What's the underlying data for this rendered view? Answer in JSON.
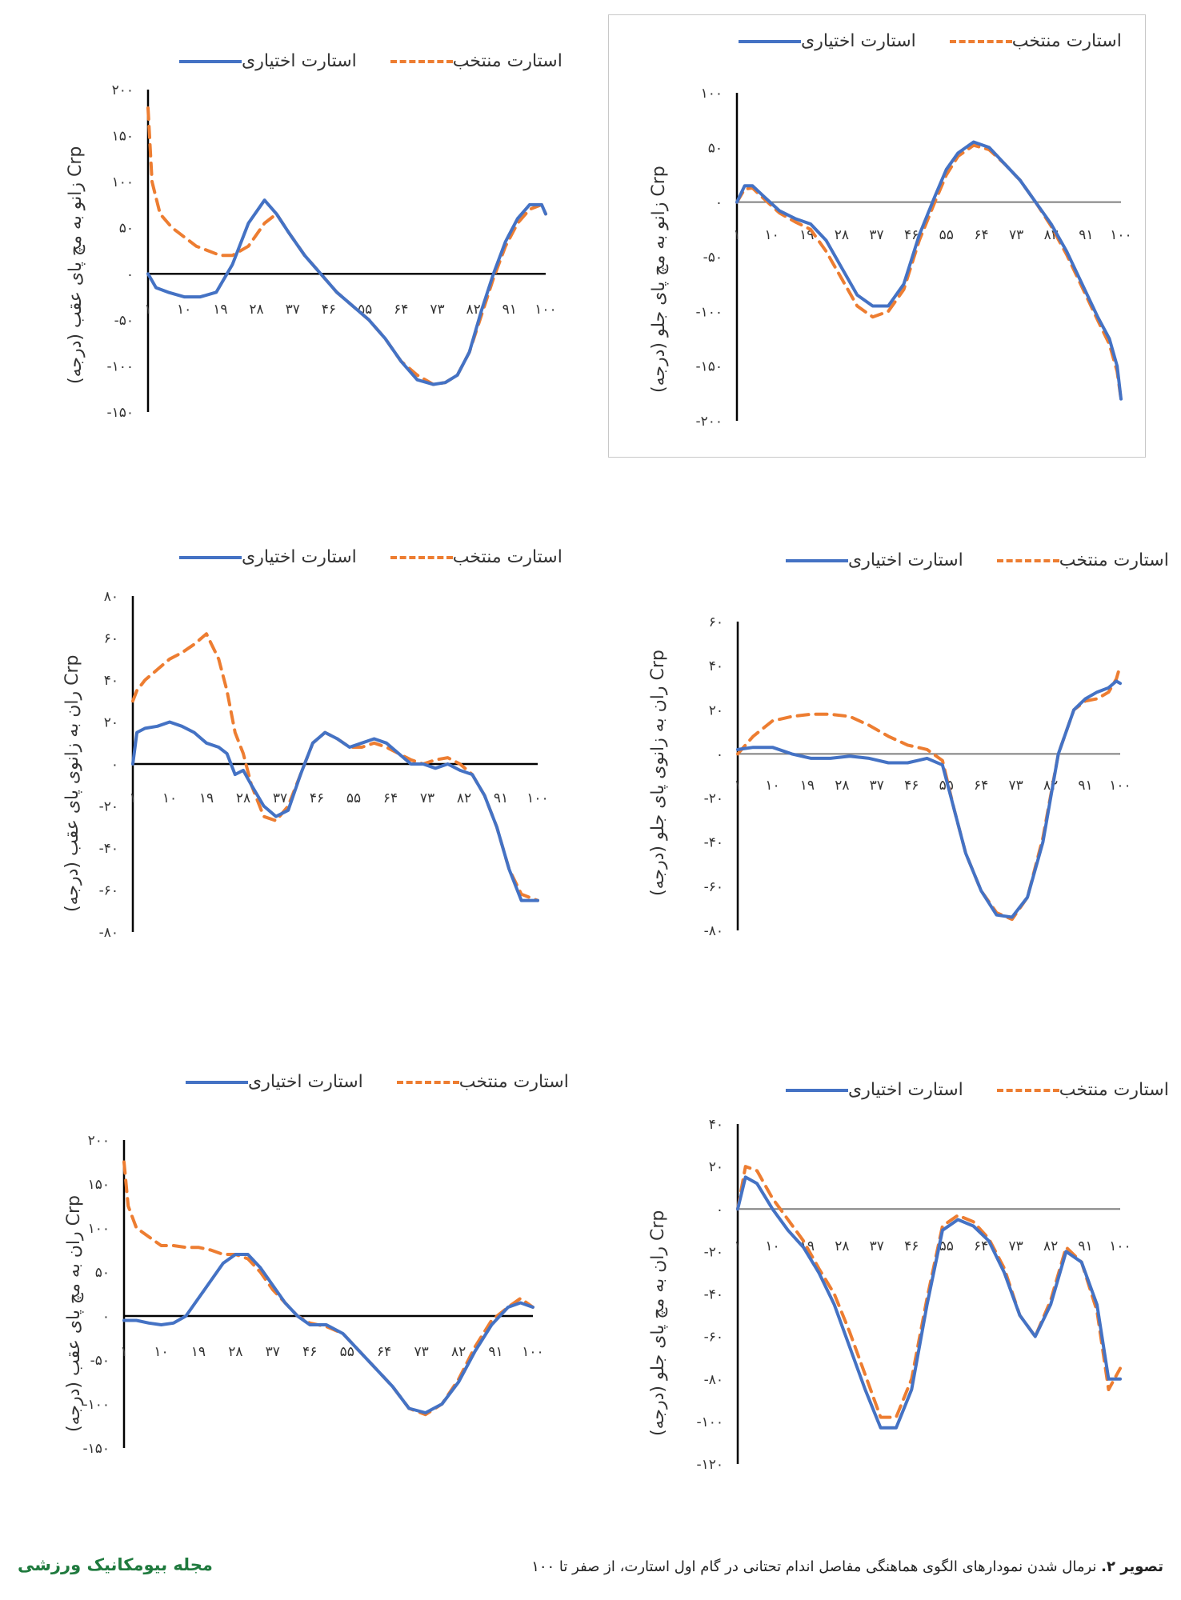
{
  "colors": {
    "voluntary": "#4472C4",
    "elite": "#ED7D31",
    "axis": "#000000",
    "zero_line_gray": "#7f7f7f"
  },
  "caption": {
    "prefix": "تصویر ۲.",
    "text": " نرمال شدن نمودارهای الگوی هماهنگی مفاصل اندام تحتانی در گام اول استارت، از صفر تا ۱۰۰"
  },
  "journal": "مجله بیومکانیک ورزشی",
  "chart_data": [
    {
      "id": "tr",
      "type": "line",
      "ylabel": "Crp زانو به مچ پای جلو (درجه)",
      "ylim": [
        -200,
        100
      ],
      "yticks": [
        "۱۰۰",
        "۵۰",
        "۰",
        "-۵۰",
        "-۱۰۰",
        "-۱۵۰",
        "-۲۰۰"
      ],
      "xticks": [
        "۱",
        "۱۰",
        "۱۹",
        "۲۸",
        "۳۷",
        "۴۶",
        "۵۵",
        "۶۴",
        "۷۳",
        "۸۲",
        "۹۱",
        "۱۰۰"
      ],
      "series": [
        {
          "name": "استارت اختیاری",
          "x": [
            1,
            3,
            5,
            8,
            12,
            16,
            20,
            24,
            28,
            32,
            36,
            40,
            44,
            48,
            52,
            55,
            58,
            62,
            66,
            70,
            74,
            78,
            82,
            86,
            90,
            94,
            97,
            99,
            100
          ],
          "y": [
            0,
            15,
            15,
            5,
            -8,
            -15,
            -20,
            -35,
            -60,
            -85,
            -95,
            -95,
            -75,
            -30,
            5,
            30,
            45,
            55,
            50,
            35,
            20,
            0,
            -20,
            -45,
            -75,
            -105,
            -125,
            -150,
            -180
          ]
        },
        {
          "name": "استارت منتخب",
          "x": [
            1,
            3,
            5,
            8,
            12,
            16,
            20,
            24,
            28,
            32,
            36,
            40,
            44,
            48,
            52,
            55,
            58,
            62,
            66,
            70,
            74,
            78,
            82,
            86,
            90,
            94,
            97,
            99,
            100
          ],
          "y": [
            0,
            12,
            13,
            3,
            -10,
            -18,
            -25,
            -45,
            -70,
            -95,
            -105,
            -100,
            -80,
            -35,
            0,
            25,
            42,
            52,
            48,
            35,
            20,
            0,
            -22,
            -48,
            -78,
            -108,
            -130,
            -155,
            -180
          ]
        }
      ]
    },
    {
      "id": "tl",
      "type": "line",
      "ylabel": "Crp زانو به مچ پای عقب (درجه)",
      "ylim": [
        -150,
        200
      ],
      "yticks": [
        "۲۰۰",
        "۱۵۰",
        "۱۰۰",
        "۵۰",
        "۰",
        "-۵۰",
        "-۱۰۰",
        "-۱۵۰"
      ],
      "xticks": [
        "۱",
        "۱۰",
        "۱۹",
        "۲۸",
        "۳۷",
        "۴۶",
        "۵۵",
        "۶۴",
        "۷۳",
        "۸۲",
        "۹۱",
        "۱۰۰"
      ],
      "series": [
        {
          "name": "استارت اختیاری",
          "x": [
            1,
            3,
            6,
            10,
            14,
            18,
            22,
            26,
            30,
            33,
            36,
            40,
            44,
            48,
            52,
            56,
            60,
            64,
            68,
            72,
            75,
            78,
            81,
            84,
            87,
            90,
            93,
            96,
            99,
            100
          ],
          "y": [
            0,
            -15,
            -20,
            -25,
            -25,
            -20,
            10,
            55,
            80,
            65,
            45,
            20,
            0,
            -20,
            -35,
            -50,
            -70,
            -95,
            -115,
            -120,
            -118,
            -110,
            -85,
            -40,
            0,
            35,
            60,
            75,
            75,
            65
          ]
        },
        {
          "name": "استارت منتخب",
          "x": [
            1,
            2,
            4,
            7,
            10,
            13,
            16,
            19,
            22,
            26,
            30,
            33,
            36,
            40,
            44,
            48,
            52,
            56,
            60,
            64,
            68,
            72,
            75,
            78,
            81,
            84,
            87,
            90,
            93,
            96,
            99,
            100
          ],
          "y": [
            180,
            100,
            65,
            50,
            40,
            30,
            25,
            20,
            20,
            30,
            55,
            65,
            45,
            20,
            0,
            -20,
            -35,
            -50,
            -70,
            -95,
            -110,
            -120,
            -118,
            -110,
            -85,
            -45,
            -5,
            30,
            55,
            70,
            75,
            65
          ]
        }
      ]
    },
    {
      "id": "mr",
      "type": "line",
      "ylabel": "Crp ران به زانوی پای جلو (درجه)",
      "ylim": [
        -80,
        60
      ],
      "yticks": [
        "۶۰",
        "۴۰",
        "۲۰",
        "۰",
        "-۲۰",
        "-۴۰",
        "-۶۰",
        "-۸۰"
      ],
      "xticks": [
        "۱",
        "۱۰",
        "۱۹",
        "۲۸",
        "۳۷",
        "۴۶",
        "۵۵",
        "۶۴",
        "۷۳",
        "۸۲",
        "۹۱",
        "۱۰۰"
      ],
      "series": [
        {
          "name": "استارت اختیاری",
          "x": [
            1,
            5,
            10,
            15,
            20,
            25,
            30,
            35,
            40,
            45,
            50,
            54,
            57,
            60,
            64,
            68,
            72,
            76,
            80,
            84,
            88,
            91,
            94,
            97,
            99,
            100
          ],
          "y": [
            2,
            3,
            3,
            0,
            -2,
            -2,
            -1,
            -2,
            -4,
            -4,
            -2,
            -5,
            -25,
            -45,
            -62,
            -73,
            -74,
            -65,
            -40,
            0,
            20,
            25,
            28,
            30,
            33,
            32
          ]
        },
        {
          "name": "استارت منتخب",
          "x": [
            1,
            5,
            10,
            15,
            20,
            25,
            30,
            35,
            40,
            45,
            50,
            54,
            57,
            60,
            64,
            68,
            72,
            76,
            80,
            84,
            88,
            91,
            94,
            97,
            99,
            100
          ],
          "y": [
            0,
            8,
            15,
            17,
            18,
            18,
            17,
            13,
            8,
            4,
            2,
            -3,
            -25,
            -45,
            -62,
            -72,
            -75,
            -65,
            -38,
            0,
            20,
            24,
            25,
            28,
            34,
            40
          ]
        }
      ]
    },
    {
      "id": "ml",
      "type": "line",
      "ylabel": "Crp ران به زانوی پای عقب (درجه)",
      "ylim": [
        -80,
        80
      ],
      "yticks": [
        "۸۰",
        "۶۰",
        "۴۰",
        "۲۰",
        "۰",
        "-۲۰",
        "-۴۰",
        "-۶۰",
        "-۸۰"
      ],
      "xticks": [
        "۱",
        "۱۰",
        "۱۹",
        "۲۸",
        "۳۷",
        "۴۶",
        "۵۵",
        "۶۴",
        "۷۳",
        "۸۲",
        "۹۱",
        "۱۰۰"
      ],
      "series": [
        {
          "name": "استارت اختیاری",
          "x": [
            1,
            2,
            4,
            7,
            10,
            13,
            16,
            19,
            22,
            24,
            26,
            28,
            30,
            33,
            36,
            39,
            42,
            45,
            48,
            51,
            54,
            57,
            60,
            63,
            66,
            69,
            72,
            75,
            78,
            81,
            84,
            87,
            90,
            93,
            96,
            100
          ],
          "y": [
            0,
            15,
            17,
            18,
            20,
            18,
            15,
            10,
            8,
            5,
            -5,
            -3,
            -10,
            -20,
            -25,
            -22,
            -5,
            10,
            15,
            12,
            8,
            10,
            12,
            10,
            5,
            0,
            0,
            -2,
            0,
            -3,
            -5,
            -15,
            -30,
            -50,
            -65,
            -65
          ]
        },
        {
          "name": "استارت منتخب",
          "x": [
            1,
            2,
            4,
            7,
            10,
            13,
            16,
            19,
            22,
            24,
            26,
            28,
            30,
            33,
            36,
            39,
            42,
            45,
            48,
            51,
            54,
            57,
            60,
            63,
            66,
            69,
            72,
            75,
            78,
            81,
            84,
            87,
            90,
            93,
            96,
            100
          ],
          "y": [
            30,
            35,
            40,
            45,
            50,
            53,
            57,
            62,
            50,
            35,
            15,
            5,
            -10,
            -25,
            -27,
            -20,
            -5,
            10,
            15,
            12,
            8,
            8,
            10,
            8,
            5,
            2,
            0,
            2,
            3,
            0,
            -5,
            -15,
            -30,
            -50,
            -62,
            -65
          ]
        }
      ]
    },
    {
      "id": "bl",
      "type": "line",
      "ylabel": "Crp ران به مچ پای عقب (درجه)",
      "ylim": [
        -150,
        200
      ],
      "yticks": [
        "۲۰۰",
        "۱۵۰",
        "۱۰۰",
        "۵۰",
        "۰",
        "-۵۰",
        "-۱۰۰",
        "-۱۵۰"
      ],
      "xticks": [
        "۱",
        "۱۰",
        "۱۹",
        "۲۸",
        "۳۷",
        "۴۶",
        "۵۵",
        "۶۴",
        "۷۳",
        "۸۲",
        "۹۱",
        "۱۰۰"
      ],
      "series": [
        {
          "name": "استارت اختیاری",
          "x": [
            1,
            4,
            7,
            10,
            13,
            16,
            19,
            22,
            25,
            28,
            31,
            34,
            37,
            40,
            43,
            46,
            50,
            54,
            58,
            62,
            66,
            70,
            74,
            78,
            82,
            86,
            90,
            94,
            97,
            100
          ],
          "y": [
            -5,
            -5,
            -8,
            -10,
            -8,
            0,
            20,
            40,
            60,
            70,
            70,
            55,
            35,
            15,
            0,
            -10,
            -10,
            -20,
            -40,
            -60,
            -80,
            -105,
            -110,
            -100,
            -75,
            -40,
            -10,
            10,
            15,
            10
          ]
        },
        {
          "name": "استارت منتخب",
          "x": [
            1,
            2,
            4,
            7,
            10,
            13,
            16,
            19,
            22,
            25,
            28,
            31,
            34,
            37,
            40,
            43,
            46,
            50,
            54,
            58,
            62,
            66,
            70,
            74,
            78,
            82,
            86,
            90,
            94,
            97,
            100
          ],
          "y": [
            175,
            125,
            100,
            90,
            80,
            80,
            78,
            78,
            75,
            70,
            70,
            65,
            50,
            30,
            15,
            0,
            -8,
            -12,
            -20,
            -40,
            -60,
            -80,
            -105,
            -112,
            -100,
            -72,
            -35,
            -5,
            10,
            20,
            10
          ]
        }
      ]
    },
    {
      "id": "br",
      "type": "line",
      "ylabel": "Crp ران به مچ پای جلو (درجه)",
      "ylim": [
        -120,
        40
      ],
      "yticks": [
        "۴۰",
        "۲۰",
        "۰",
        "-۲۰",
        "-۴۰",
        "-۶۰",
        "-۸۰",
        "-۱۰۰",
        "-۱۲۰"
      ],
      "xticks": [
        "۱",
        "۱۰",
        "۱۹",
        "۲۸",
        "۳۷",
        "۴۶",
        "۵۵",
        "۶۴",
        "۷۳",
        "۸۲",
        "۹۱",
        "۱۰۰"
      ],
      "series": [
        {
          "name": "استارت اختیاری",
          "x": [
            1,
            3,
            6,
            10,
            14,
            18,
            22,
            26,
            30,
            34,
            38,
            42,
            46,
            50,
            54,
            58,
            62,
            66,
            70,
            74,
            78,
            82,
            86,
            90,
            94,
            97,
            100
          ],
          "y": [
            0,
            15,
            12,
            0,
            -10,
            -18,
            -30,
            -45,
            -65,
            -85,
            -103,
            -103,
            -85,
            -45,
            -10,
            -5,
            -8,
            -15,
            -30,
            -50,
            -60,
            -45,
            -20,
            -25,
            -45,
            -80,
            -80
          ]
        },
        {
          "name": "استارت منتخب",
          "x": [
            1,
            3,
            6,
            10,
            14,
            18,
            22,
            26,
            30,
            34,
            38,
            42,
            46,
            50,
            54,
            58,
            62,
            66,
            70,
            74,
            78,
            82,
            86,
            90,
            94,
            97,
            100
          ],
          "y": [
            0,
            20,
            18,
            5,
            -5,
            -15,
            -28,
            -40,
            -58,
            -78,
            -98,
            -98,
            -80,
            -42,
            -8,
            -3,
            -6,
            -14,
            -28,
            -50,
            -60,
            -43,
            -18,
            -25,
            -48,
            -85,
            -75
          ]
        }
      ]
    }
  ]
}
